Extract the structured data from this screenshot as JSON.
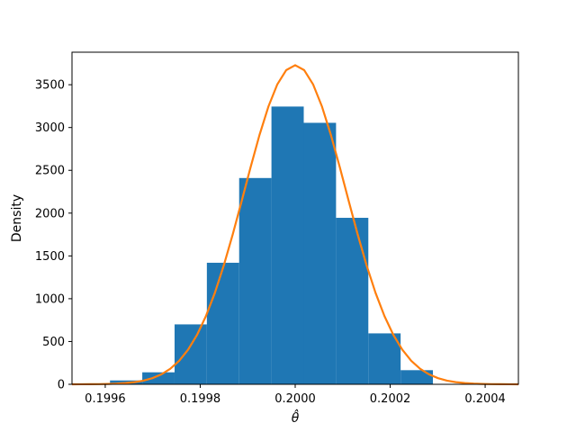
{
  "chart_data": {
    "type": "bar",
    "title": "",
    "xlabel": "θ̂",
    "ylabel": "Density",
    "xlim": [
      0.19953,
      0.20047
    ],
    "ylim": [
      0,
      3880
    ],
    "grid": false,
    "x_ticks": [
      0.1996,
      0.1998,
      0.2,
      0.2002,
      0.2004
    ],
    "x_tick_labels": [
      "0.1996",
      "0.1998",
      "0.2000",
      "0.2002",
      "0.2004"
    ],
    "y_ticks": [
      0,
      500,
      1000,
      1500,
      2000,
      2500,
      3000,
      3500
    ],
    "y_tick_labels": [
      "0",
      "500",
      "1000",
      "1500",
      "2000",
      "2500",
      "3000",
      "3500"
    ],
    "histogram": {
      "color": "#1f77b4",
      "bin_edges": [
        0.19961,
        0.199678,
        0.199746,
        0.199814,
        0.199882,
        0.19995,
        0.200018,
        0.200086,
        0.200154,
        0.200222,
        0.20029
      ],
      "densities": [
        45,
        140,
        700,
        1420,
        2410,
        3245,
        3055,
        1945,
        595,
        165
      ]
    },
    "density_curve": {
      "color": "#ff7f0e",
      "mean": 0.2,
      "std": 0.000107,
      "x_range": [
        0.19953,
        0.20047
      ]
    }
  }
}
